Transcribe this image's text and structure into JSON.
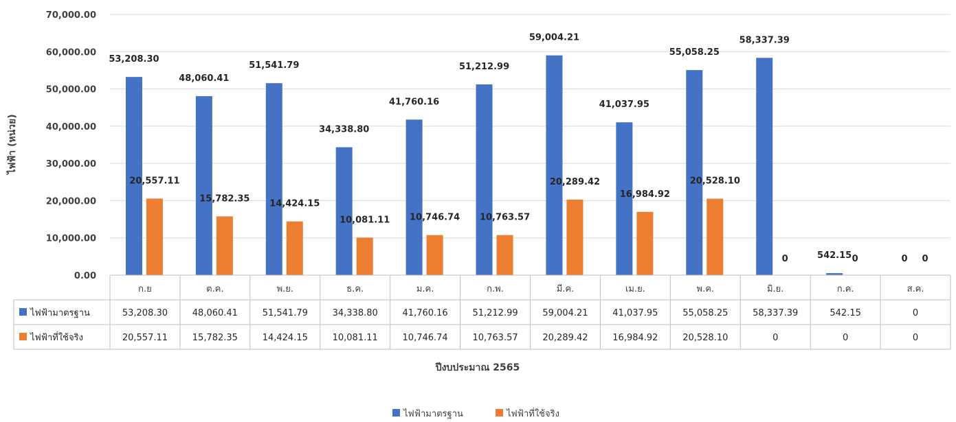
{
  "chart_data": {
    "type": "bar",
    "title": "",
    "xlabel": "ปีงบประมาณ 2565",
    "ylabel": "ไฟฟ้า (หน่วย)",
    "ylim": [
      0,
      70000
    ],
    "yticks": [
      "0.00",
      "10,000.00",
      "20,000.00",
      "30,000.00",
      "40,000.00",
      "50,000.00",
      "60,000.00",
      "70,000.00"
    ],
    "categories": [
      "ก.ย",
      "ต.ค.",
      "พ.ย.",
      "ธ.ค.",
      "ม.ค.",
      "ก.พ.",
      "มี.ค.",
      "เม.ย.",
      "พ.ค.",
      "มิ.ย.",
      "ก.ค.",
      "ส.ค."
    ],
    "series": [
      {
        "name": "ไฟฟ้ามาตรฐาน",
        "color": "#4472C4",
        "values": [
          53208.3,
          48060.41,
          51541.79,
          34338.8,
          41760.16,
          51212.99,
          59004.21,
          41037.95,
          55058.25,
          58337.39,
          542.15,
          0
        ],
        "labels": [
          "53,208.30",
          "48,060.41",
          "51,541.79",
          "34,338.80",
          "41,760.16",
          "51,212.99",
          "59,004.21",
          "41,037.95",
          "55,058.25",
          "58,337.39",
          "542.15",
          "0"
        ]
      },
      {
        "name": "ไฟฟ้าที่ใช้จริง",
        "color": "#ED7D31",
        "values": [
          20557.11,
          15782.35,
          14424.15,
          10081.11,
          10746.74,
          10763.57,
          20289.42,
          16984.92,
          20528.1,
          0,
          0,
          0
        ],
        "labels": [
          "20,557.11",
          "15,782.35",
          "14,424.15",
          "10,081.11",
          "10,746.74",
          "10,763.57",
          "20,289.42",
          "16,984.92",
          "20,528.10",
          "0",
          "0",
          "0"
        ]
      }
    ],
    "grid": true,
    "legend": "bottom",
    "data_table": true
  }
}
